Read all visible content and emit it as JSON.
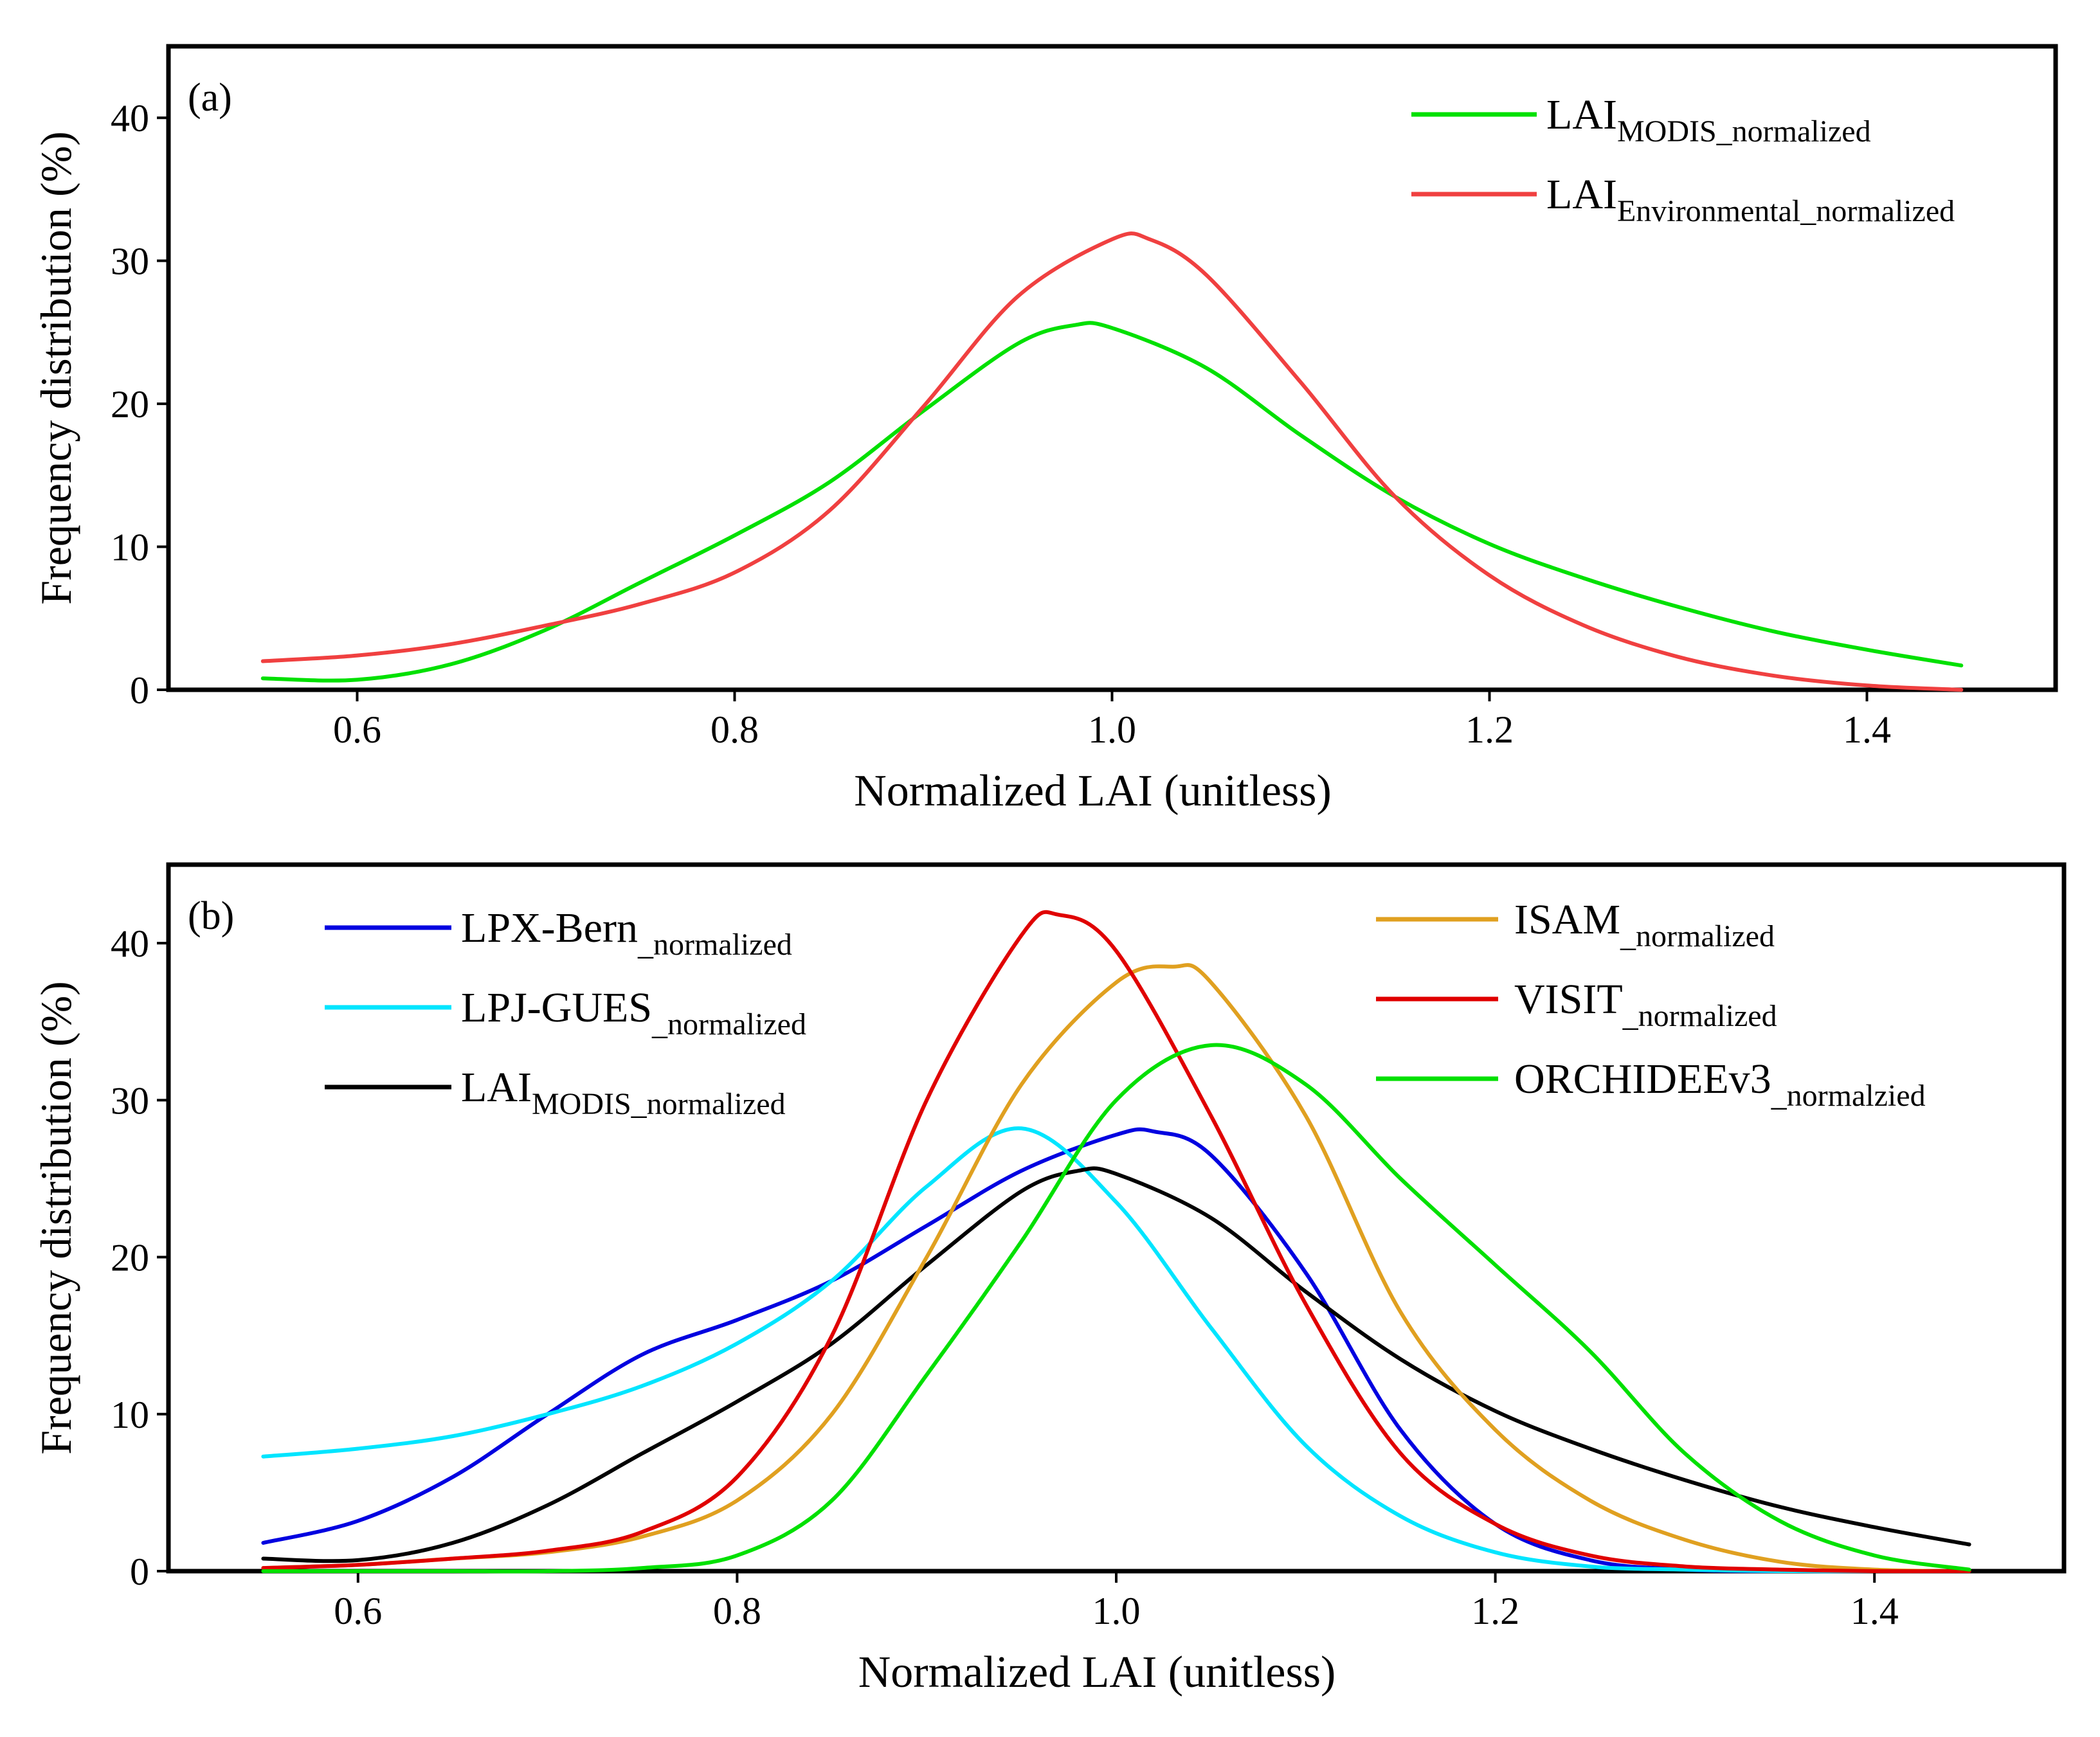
{
  "chart_data": [
    {
      "panel": "(a)",
      "type": "line",
      "xlabel": "Normalized LAI (unitless)",
      "ylabel": "Frequency distribution (%)",
      "xlim": [
        0.5,
        1.5
      ],
      "ylim": [
        0,
        45
      ],
      "xticks": [
        "0.6",
        "0.8",
        "1.0",
        "1.2",
        "1.4"
      ],
      "yticks": [
        "0",
        "10",
        "20",
        "30",
        "40"
      ],
      "legend_position": "top-right",
      "series": [
        {
          "name": "LAI",
          "sub": "MODIS_normalized",
          "color": "#00e000",
          "x": [
            0.55,
            0.6,
            0.65,
            0.7,
            0.75,
            0.8,
            0.85,
            0.9,
            0.95,
            0.98,
            1.0,
            1.05,
            1.1,
            1.15,
            1.2,
            1.25,
            1.3,
            1.35,
            1.4,
            1.45
          ],
          "y": [
            0.8,
            0.7,
            1.8,
            4.2,
            7.5,
            10.8,
            14.5,
            19.5,
            24.2,
            25.5,
            25.3,
            22.5,
            17.8,
            13.5,
            10.2,
            7.8,
            5.8,
            4.1,
            2.8,
            1.7
          ]
        },
        {
          "name": "LAI",
          "sub": "Environmental_normalized",
          "color": "#f04040",
          "x": [
            0.55,
            0.6,
            0.65,
            0.7,
            0.75,
            0.8,
            0.85,
            0.9,
            0.95,
            1.0,
            1.02,
            1.05,
            1.1,
            1.15,
            1.2,
            1.25,
            1.3,
            1.35,
            1.4,
            1.45
          ],
          "y": [
            2.0,
            2.4,
            3.2,
            4.5,
            6.0,
            8.2,
            12.5,
            19.8,
            27.5,
            31.5,
            31.5,
            29.0,
            21.5,
            13.5,
            8.0,
            4.5,
            2.3,
            1.0,
            0.3,
            0.0
          ]
        }
      ]
    },
    {
      "panel": "(b)",
      "type": "line",
      "xlabel": "Normalized LAI (unitless)",
      "ylabel": "Frequency distribution (%)",
      "xlim": [
        0.5,
        1.5
      ],
      "ylim": [
        0,
        45
      ],
      "xticks": [
        "0.6",
        "0.8",
        "1.0",
        "1.2",
        "1.4"
      ],
      "yticks": [
        "0",
        "10",
        "20",
        "30",
        "40"
      ],
      "legend_position": "top-left and top-right",
      "series": [
        {
          "name": "LPX-Bern",
          "sub": "_normalized",
          "color": "#0000e0",
          "legend_col": 0,
          "x": [
            0.55,
            0.6,
            0.65,
            0.7,
            0.75,
            0.8,
            0.85,
            0.9,
            0.95,
            1.0,
            1.02,
            1.05,
            1.1,
            1.15,
            1.2,
            1.25,
            1.3,
            1.35,
            1.4,
            1.45
          ],
          "y": [
            1.8,
            3.2,
            6.0,
            10.0,
            13.8,
            16.0,
            18.5,
            22.0,
            25.5,
            27.8,
            28.0,
            26.5,
            19.0,
            9.0,
            3.0,
            0.7,
            0.1,
            0.0,
            0.0,
            0.0
          ]
        },
        {
          "name": "LPJ-GUES",
          "sub": "_normalized",
          "color": "#00e5ff",
          "legend_col": 0,
          "x": [
            0.55,
            0.6,
            0.65,
            0.7,
            0.75,
            0.8,
            0.85,
            0.9,
            0.95,
            1.0,
            1.05,
            1.1,
            1.15,
            1.2,
            1.25,
            1.3,
            1.35,
            1.4,
            1.45
          ],
          "y": [
            7.3,
            7.8,
            8.6,
            10.0,
            11.8,
            14.5,
            18.5,
            24.5,
            28.2,
            23.5,
            15.5,
            8.0,
            3.5,
            1.2,
            0.3,
            0.1,
            0.0,
            0.0,
            0.0
          ]
        },
        {
          "name": "LAI",
          "sub": "MODIS_normalized",
          "color": "#000000",
          "legend_col": 0,
          "x": [
            0.55,
            0.6,
            0.65,
            0.7,
            0.75,
            0.8,
            0.85,
            0.9,
            0.95,
            0.98,
            1.0,
            1.05,
            1.1,
            1.15,
            1.2,
            1.25,
            1.3,
            1.35,
            1.4,
            1.45
          ],
          "y": [
            0.8,
            0.7,
            1.8,
            4.2,
            7.5,
            10.8,
            14.5,
            19.5,
            24.2,
            25.5,
            25.3,
            22.5,
            17.8,
            13.5,
            10.2,
            7.8,
            5.8,
            4.1,
            2.8,
            1.7
          ]
        },
        {
          "name": "ISAM",
          "sub": "_normalized",
          "color": "#e0a020",
          "legend_col": 1,
          "x": [
            0.55,
            0.6,
            0.65,
            0.7,
            0.75,
            0.8,
            0.85,
            0.9,
            0.95,
            1.0,
            1.03,
            1.05,
            1.1,
            1.15,
            1.2,
            1.25,
            1.3,
            1.35,
            1.4,
            1.45
          ],
          "y": [
            0.2,
            0.4,
            0.8,
            1.2,
            2.2,
            4.5,
            10.0,
            20.0,
            31.0,
            37.5,
            38.5,
            37.5,
            29.0,
            16.5,
            9.0,
            4.5,
            2.0,
            0.6,
            0.1,
            0.0
          ]
        },
        {
          "name": "VISIT",
          "sub": "_normalized",
          "color": "#e00000",
          "legend_col": 1,
          "x": [
            0.55,
            0.6,
            0.65,
            0.7,
            0.75,
            0.8,
            0.85,
            0.9,
            0.95,
            0.97,
            1.0,
            1.05,
            1.1,
            1.15,
            1.2,
            1.25,
            1.3,
            1.35,
            1.4,
            1.45
          ],
          "y": [
            0.2,
            0.4,
            0.8,
            1.3,
            2.5,
            6.0,
            15.0,
            30.0,
            40.5,
            41.8,
            39.5,
            29.0,
            17.0,
            7.5,
            3.0,
            1.0,
            0.3,
            0.1,
            0.0,
            0.0
          ]
        },
        {
          "name": "ORCHIDEEv3",
          "sub": "_normalzied",
          "color": "#00e000",
          "legend_col": 1,
          "x": [
            0.55,
            0.6,
            0.65,
            0.7,
            0.75,
            0.8,
            0.85,
            0.9,
            0.95,
            1.0,
            1.05,
            1.1,
            1.15,
            1.2,
            1.25,
            1.3,
            1.35,
            1.4,
            1.45
          ],
          "y": [
            0.0,
            0.0,
            0.0,
            0.0,
            0.2,
            1.0,
            4.5,
            12.5,
            21.0,
            30.0,
            33.5,
            31.0,
            25.0,
            19.5,
            14.0,
            7.5,
            3.2,
            1.0,
            0.1
          ]
        }
      ]
    }
  ]
}
